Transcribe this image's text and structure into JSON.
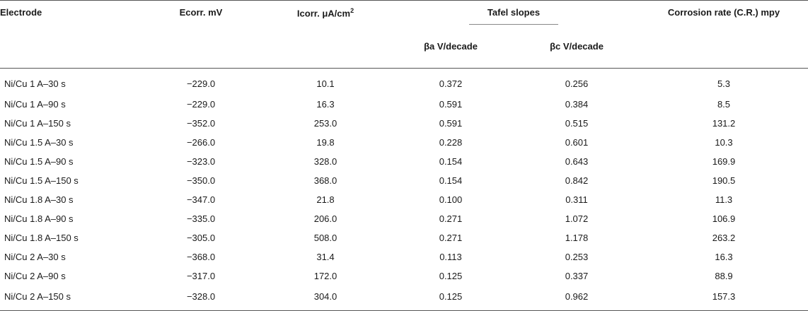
{
  "table": {
    "headers": {
      "electrode": "Electrode",
      "ecorr": "Ecorr. mV",
      "icorr_text": "Icorr. μA/cm",
      "icorr_sup": "2",
      "tafel_group": "Tafel slopes",
      "beta_a": "βa V/decade",
      "beta_c": "βc V/decade",
      "corrosion_rate": "Corrosion rate (C.R.) mpy"
    },
    "rows": [
      {
        "electrode": "Ni/Cu 1 A–30 s",
        "ecorr": "−229.0",
        "icorr": "10.1",
        "ba": "0.372",
        "bc": "0.256",
        "cr": "5.3"
      },
      {
        "electrode": "Ni/Cu 1 A–90 s",
        "ecorr": "−229.0",
        "icorr": "16.3",
        "ba": "0.591",
        "bc": "0.384",
        "cr": "8.5"
      },
      {
        "electrode": "Ni/Cu 1 A–150 s",
        "ecorr": "−352.0",
        "icorr": "253.0",
        "ba": "0.591",
        "bc": "0.515",
        "cr": "131.2"
      },
      {
        "electrode": "Ni/Cu 1.5 A–30 s",
        "ecorr": "−266.0",
        "icorr": "19.8",
        "ba": "0.228",
        "bc": "0.601",
        "cr": "10.3"
      },
      {
        "electrode": "Ni/Cu 1.5 A–90 s",
        "ecorr": "−323.0",
        "icorr": "328.0",
        "ba": "0.154",
        "bc": "0.643",
        "cr": "169.9"
      },
      {
        "electrode": "Ni/Cu 1.5 A–150 s",
        "ecorr": "−350.0",
        "icorr": "368.0",
        "ba": "0.154",
        "bc": "0.842",
        "cr": "190.5"
      },
      {
        "electrode": "Ni/Cu 1.8 A–30 s",
        "ecorr": "−347.0",
        "icorr": "21.8",
        "ba": "0.100",
        "bc": "0.311",
        "cr": "11.3"
      },
      {
        "electrode": "Ni/Cu 1.8 A–90 s",
        "ecorr": "−335.0",
        "icorr": "206.0",
        "ba": "0.271",
        "bc": "1.072",
        "cr": "106.9"
      },
      {
        "electrode": "Ni/Cu 1.8 A–150 s",
        "ecorr": "−305.0",
        "icorr": "508.0",
        "ba": "0.271",
        "bc": "1.178",
        "cr": "263.2"
      },
      {
        "electrode": "Ni/Cu 2 A–30 s",
        "ecorr": "−368.0",
        "icorr": "31.4",
        "ba": "0.113",
        "bc": "0.253",
        "cr": "16.3"
      },
      {
        "electrode": "Ni/Cu 2 A–90 s",
        "ecorr": "−317.0",
        "icorr": "172.0",
        "ba": "0.125",
        "bc": "0.337",
        "cr": "88.9"
      },
      {
        "electrode": "Ni/Cu 2 A–150 s",
        "ecorr": "−328.0",
        "icorr": "304.0",
        "ba": "0.125",
        "bc": "0.962",
        "cr": "157.3"
      }
    ]
  }
}
